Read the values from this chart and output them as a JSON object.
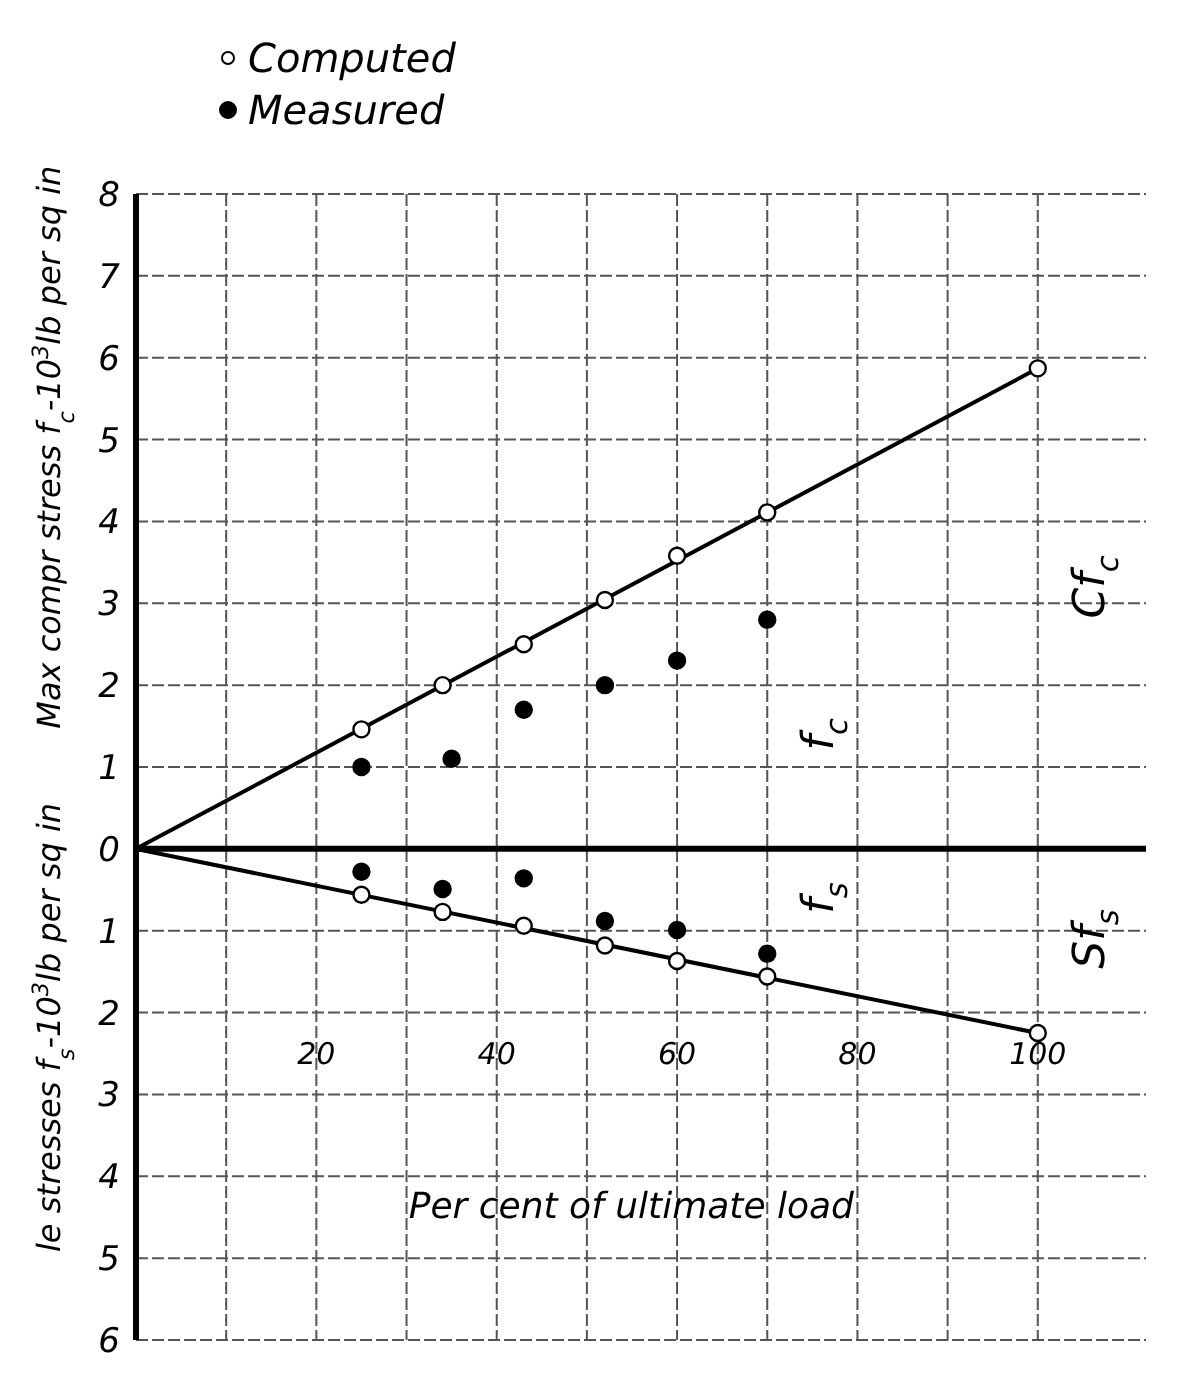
{
  "chart_data": {
    "type": "scatter",
    "ylabel": "Max compr stress f$_{c}$-10$^{3}$lb per sq in",
    "xlabel": "Per cent of ultimate load",
    "xlim": [
      0,
      112
    ],
    "xticks": [
      {
        "value": 10,
        "label": null
      },
      20,
      {
        "value": 30,
        "label": null
      },
      40,
      {
        "value": 50,
        "label": null
      },
      60,
      {
        "value": 70,
        "label": null
      },
      80,
      {
        "value": 90,
        "label": null
      },
      100
    ],
    "ylim": [
      -6,
      8
    ],
    "yticks": [
      {
        "value": -6,
        "label": "6"
      },
      {
        "value": -5,
        "label": "5"
      },
      {
        "value": -4,
        "label": "4"
      },
      {
        "value": -3,
        "label": "3"
      },
      {
        "value": -2,
        "label": "2"
      },
      {
        "value": -1,
        "label": "1"
      },
      0,
      1,
      2,
      3,
      4,
      5,
      6,
      7,
      8
    ],
    "grid": true,
    "legend": "top left",
    "ref_lines": [
      {
        "axis": "y",
        "value": 0,
        "color": "#000000"
      }
    ],
    "series": [
      {
        "name": "Computed",
        "marker": "circle",
        "color": "#ffffff",
        "x": [
          25,
          34,
          43,
          52,
          60,
          70,
          100,
          25,
          34,
          43,
          52,
          60,
          70,
          100
        ],
        "values": [
          1.46,
          2.0,
          2.5,
          3.04,
          3.58,
          4.11,
          5.87,
          -0.56,
          -0.77,
          -0.94,
          -1.18,
          -1.37,
          -1.56,
          -2.25
        ]
      },
      {
        "name": "Measured",
        "marker": "circle",
        "color": "#000000",
        "x": [
          25,
          35,
          43,
          52,
          60,
          70,
          25,
          34,
          43,
          52,
          60,
          70
        ],
        "values": [
          1.0,
          1.1,
          1.7,
          2.0,
          2.3,
          2.8,
          -0.28,
          -0.49,
          -0.36,
          -0.88,
          -0.99,
          -1.28
        ]
      },
      {
        "type": "line",
        "marker": "none",
        "color": "#000000",
        "x": [
          0,
          100
        ],
        "values": [
          0,
          5.87
        ]
      },
      {
        "type": "line",
        "marker": "none",
        "color": "#000000",
        "x": [
          0,
          100
        ],
        "values": [
          0,
          -2.25
        ]
      }
    ],
    "annotations": [
      {
        "text": "le stresses f$_{s}$-10$^{3}$lb per sq in"
      },
      "f$_{c}$",
      "f$_{s}$",
      "Cf$_{c}$",
      "Sf$_{s}$"
    ]
  }
}
